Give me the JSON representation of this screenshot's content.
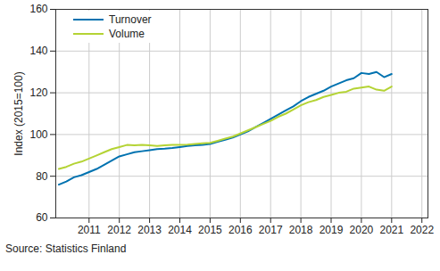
{
  "chart_data": {
    "type": "line",
    "y_label": "Index (2015=100)",
    "caption": "Source: Statistics Finland",
    "x": [
      2010.0,
      2010.25,
      2010.5,
      2010.75,
      2011.0,
      2011.25,
      2011.5,
      2011.75,
      2012.0,
      2012.25,
      2012.5,
      2012.75,
      2013.0,
      2013.25,
      2013.5,
      2013.75,
      2014.0,
      2014.25,
      2014.5,
      2014.75,
      2015.0,
      2015.25,
      2015.5,
      2015.75,
      2016.0,
      2016.25,
      2016.5,
      2016.75,
      2017.0,
      2017.25,
      2017.5,
      2017.75,
      2018.0,
      2018.25,
      2018.5,
      2018.75,
      2019.0,
      2019.25,
      2019.5,
      2019.75,
      2020.0,
      2020.25,
      2020.5,
      2020.75,
      2021.0
    ],
    "series": [
      {
        "name": "Turnover",
        "color": "#0072b0",
        "values": [
          76,
          77.5,
          79.5,
          80.5,
          82,
          83.5,
          85.5,
          87.5,
          89.5,
          90.5,
          91.5,
          92,
          92.5,
          93,
          93.2,
          93.5,
          94,
          94.5,
          94.8,
          95,
          95.5,
          96.5,
          97.5,
          98.5,
          100,
          101.5,
          103.5,
          105.5,
          107.5,
          109.5,
          111.5,
          113.5,
          116,
          118,
          119.5,
          121,
          123,
          124.5,
          126,
          127,
          129.5,
          129,
          130,
          127.5,
          129
        ]
      },
      {
        "name": "Volume",
        "color": "#b4d334",
        "values": [
          83.5,
          84.5,
          86,
          87,
          88.5,
          90,
          91.5,
          93,
          94,
          95,
          94.8,
          95,
          94.8,
          94.5,
          94.8,
          95,
          95,
          95.2,
          95.5,
          95.8,
          96,
          97,
          98,
          99,
          100.5,
          102,
          103.5,
          105,
          106.5,
          108.5,
          110,
          112,
          114,
          115.5,
          116.5,
          118,
          119,
          120,
          120.5,
          122,
          122.5,
          123,
          121.5,
          121,
          123
        ]
      }
    ],
    "xlim": [
      2009.9,
      2022.2
    ],
    "xticks": [
      2011,
      2012,
      2013,
      2014,
      2015,
      2016,
      2017,
      2018,
      2019,
      2020,
      2021,
      2022
    ],
    "ylim": [
      60,
      160
    ],
    "yticks": [
      60,
      80,
      100,
      120,
      140,
      160
    ],
    "grid": true,
    "legend": "top-left"
  }
}
